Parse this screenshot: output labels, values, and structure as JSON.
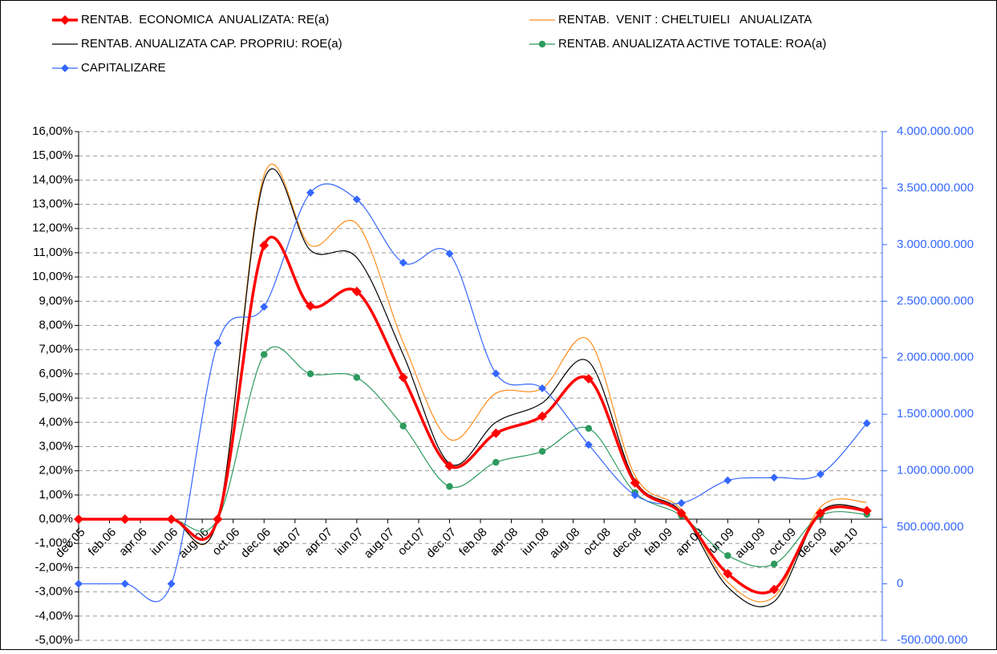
{
  "chart_data": {
    "type": "line",
    "x": [
      "2005-12",
      "2006-03",
      "2006-06",
      "2006-09",
      "2006-12",
      "2007-03",
      "2007-06",
      "2007-09",
      "2007-12",
      "2008-03",
      "2008-06",
      "2008-09",
      "2008-12",
      "2009-03",
      "2009-06",
      "2009-09",
      "2009-12",
      "2010-03"
    ],
    "xlim": [
      "2005-12",
      "2010-04"
    ],
    "xticks": [
      {
        "value": "2005-12",
        "label": "dec.05"
      },
      {
        "value": "2006-02",
        "label": "feb.06"
      },
      {
        "value": "2006-04",
        "label": "apr.06"
      },
      {
        "value": "2006-06",
        "label": "iun.06"
      },
      {
        "value": "2006-08",
        "label": "aug.06"
      },
      {
        "value": "2006-10",
        "label": "oct.06"
      },
      {
        "value": "2006-12",
        "label": "dec.06"
      },
      {
        "value": "2007-02",
        "label": "feb.07"
      },
      {
        "value": "2007-04",
        "label": "apr.07"
      },
      {
        "value": "2007-06",
        "label": "iun.07"
      },
      {
        "value": "2007-08",
        "label": "aug.07"
      },
      {
        "value": "2007-10",
        "label": "oct.07"
      },
      {
        "value": "2007-12",
        "label": "dec.07"
      },
      {
        "value": "2008-02",
        "label": "feb.08"
      },
      {
        "value": "2008-04",
        "label": "apr.08"
      },
      {
        "value": "2008-06",
        "label": "iun.08"
      },
      {
        "value": "2008-08",
        "label": "aug.08"
      },
      {
        "value": "2008-10",
        "label": "oct.08"
      },
      {
        "value": "2008-12",
        "label": "dec.08"
      },
      {
        "value": "2009-02",
        "label": "feb.09"
      },
      {
        "value": "2009-04",
        "label": "apr.09"
      },
      {
        "value": "2009-06",
        "label": "iun.09"
      },
      {
        "value": "2009-08",
        "label": "aug.09"
      },
      {
        "value": "2009-10",
        "label": "oct.09"
      },
      {
        "value": "2009-12",
        "label": "dec.09"
      },
      {
        "value": "2010-02",
        "label": "feb.10"
      }
    ],
    "ylim": [
      -5,
      16
    ],
    "yticks": [
      {
        "value": -5,
        "label": "-5,00%"
      },
      {
        "value": -4,
        "label": "-4,00%"
      },
      {
        "value": -3,
        "label": "-3,00%"
      },
      {
        "value": -2,
        "label": "-2,00%"
      },
      {
        "value": -1,
        "label": "-1,00%"
      },
      {
        "value": 0,
        "label": "0,00%"
      },
      {
        "value": 1,
        "label": "1,00%"
      },
      {
        "value": 2,
        "label": "2,00%"
      },
      {
        "value": 3,
        "label": "3,00%"
      },
      {
        "value": 4,
        "label": "4,00%"
      },
      {
        "value": 5,
        "label": "5,00%"
      },
      {
        "value": 6,
        "label": "6,00%"
      },
      {
        "value": 7,
        "label": "7,00%"
      },
      {
        "value": 8,
        "label": "8,00%"
      },
      {
        "value": 9,
        "label": "9,00%"
      },
      {
        "value": 10,
        "label": "10,00%"
      },
      {
        "value": 11,
        "label": "11,00%"
      },
      {
        "value": 12,
        "label": "12,00%"
      },
      {
        "value": 13,
        "label": "13,00%"
      },
      {
        "value": 14,
        "label": "14,00%"
      },
      {
        "value": 15,
        "label": "15,00%"
      },
      {
        "value": 16,
        "label": "16,00%"
      }
    ],
    "y2lim": [
      -500000000,
      4000000000
    ],
    "y2ticks": [
      {
        "value": -500000000,
        "label": "-500.000.000"
      },
      0,
      {
        "value": 500000000,
        "label": "500.000.000"
      },
      {
        "value": 1000000000,
        "label": "1.000.000.000"
      },
      {
        "value": 1500000000,
        "label": "1.500.000.000"
      },
      {
        "value": 2000000000,
        "label": "2.000.000.000"
      },
      {
        "value": 2500000000,
        "label": "2.500.000.000"
      },
      {
        "value": 3000000000,
        "label": "3.000.000.000"
      },
      {
        "value": 3500000000,
        "label": "3.500.000.000"
      },
      {
        "value": 4000000000,
        "label": "4.000.000.000"
      }
    ],
    "grid": true,
    "series": [
      {
        "name": "RENTAB.  ECONOMICA  ANUALIZATA: RE(a)",
        "color": "#ff0000",
        "marker": "diamond",
        "values": [
          0,
          0,
          0,
          0,
          11.3,
          8.8,
          9.4,
          5.85,
          2.2,
          3.55,
          4.25,
          5.8,
          1.5,
          0.25,
          -2.25,
          -2.9,
          0.25,
          0.35
        ]
      },
      {
        "name": "RENTAB.  VENIT : CHELTUIELI   ANUALIZATA",
        "color": "#ff8c1a",
        "values": [
          0,
          0,
          0,
          0,
          14.2,
          11.3,
          12.2,
          7.3,
          3.3,
          5.2,
          5.4,
          7.4,
          1.8,
          0.4,
          -2.6,
          -3.2,
          0.5,
          0.7
        ]
      },
      {
        "name": "RENTAB. ANUALIZATA CAP. PROPRIU: ROE(a)",
        "color": "#000000",
        "values": [
          0,
          0,
          0,
          0,
          14.0,
          11.1,
          10.8,
          6.8,
          2.3,
          4.0,
          4.8,
          6.5,
          1.6,
          0.3,
          -2.8,
          -3.4,
          0.3,
          0.4
        ]
      },
      {
        "name": "RENTAB. ANUALIZATA ACTIVE TOTALE: ROA(a)",
        "color": "#2e9b5e",
        "marker": "circle",
        "values": [
          0,
          0,
          0,
          0,
          6.8,
          6.0,
          5.85,
          3.85,
          1.35,
          2.35,
          2.8,
          3.75,
          1.1,
          0.15,
          -1.5,
          -1.85,
          0.15,
          0.2
        ]
      },
      {
        "name": "CAPITALIZARE",
        "color": "#3366ff",
        "marker": "diamond",
        "axis": "y2",
        "values": [
          0,
          0,
          0,
          2130000000,
          2450000000,
          3460000000,
          3400000000,
          2840000000,
          2920000000,
          1860000000,
          1730000000,
          1230000000,
          785000000,
          715000000,
          915000000,
          940000000,
          970000000,
          1420000000
        ]
      }
    ]
  }
}
